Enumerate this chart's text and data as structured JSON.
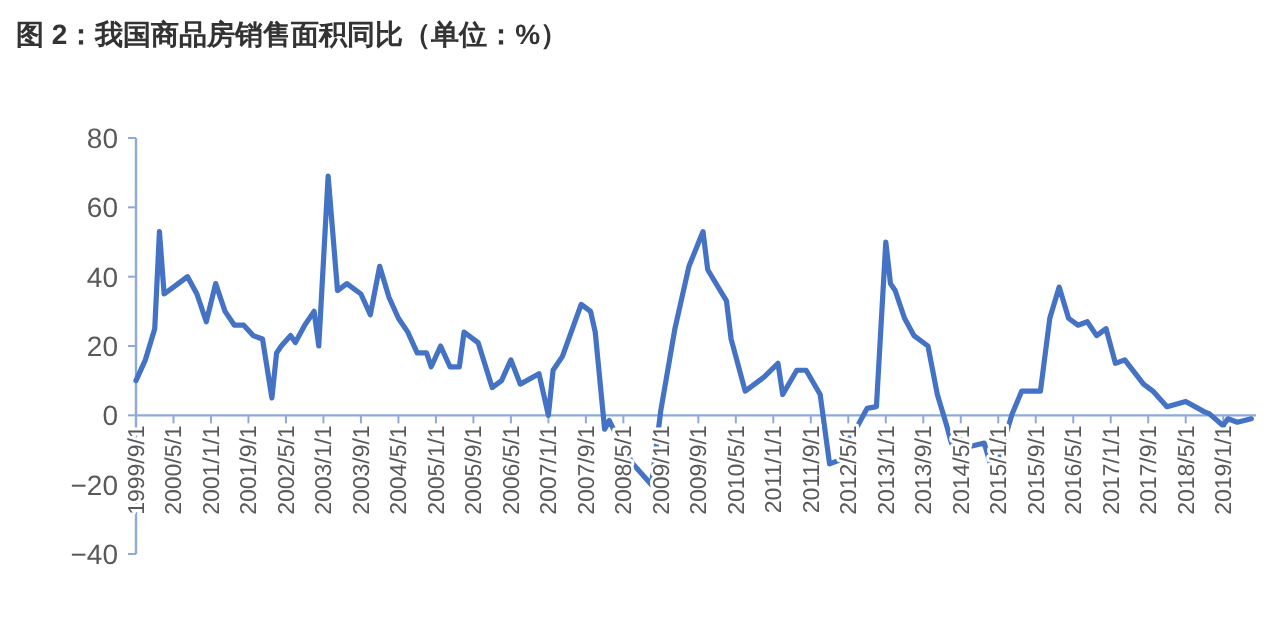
{
  "chart_data": {
    "type": "line",
    "title": "图 2：我国商品房销售面积同比（单位：%）",
    "x": [
      "1999-09",
      "1999-11",
      "2000-01",
      "2000-02",
      "2000-03",
      "2000-05",
      "2000-08",
      "2000-10",
      "2000-12",
      "2001-02",
      "2001-04",
      "2001-06",
      "2001-08",
      "2001-10",
      "2001-12",
      "2002-02",
      "2002-03",
      "2002-04",
      "2002-06",
      "2002-07",
      "2002-09",
      "2002-11",
      "2002-12",
      "2003-02",
      "2003-04",
      "2003-06",
      "2003-09",
      "2003-11",
      "2004-01",
      "2004-03",
      "2004-05",
      "2004-07",
      "2004-09",
      "2004-11",
      "2004-12",
      "2005-02",
      "2005-04",
      "2005-06",
      "2005-07",
      "2005-10",
      "2006-01",
      "2006-03",
      "2006-05",
      "2006-07",
      "2006-11",
      "2007-01",
      "2007-02",
      "2007-04",
      "2007-08",
      "2007-10",
      "2007-11",
      "2008-01",
      "2008-02",
      "2008-04",
      "2008-07",
      "2008-11",
      "2009-01",
      "2009-04",
      "2009-07",
      "2009-10",
      "2009-11",
      "2010-03",
      "2010-04",
      "2010-07",
      "2010-11",
      "2011-02",
      "2011-03",
      "2011-06",
      "2011-08",
      "2011-11",
      "2012-01",
      "2012-03",
      "2012-06",
      "2012-07",
      "2012-09",
      "2012-11",
      "2013-01",
      "2013-02",
      "2013-03",
      "2013-05",
      "2013-07",
      "2013-10",
      "2013-12",
      "2014-02",
      "2014-03",
      "2014-05",
      "2014-07",
      "2014-10",
      "2014-12",
      "2015-04",
      "2015-06",
      "2015-10",
      "2015-12",
      "2016-02",
      "2016-04",
      "2016-06",
      "2016-08",
      "2016-10",
      "2016-12",
      "2017-02",
      "2017-04",
      "2017-08",
      "2017-10",
      "2018-01",
      "2018-05",
      "2018-09",
      "2018-10",
      "2019-01",
      "2019-02",
      "2019-04",
      "2019-07"
    ],
    "series": [
      {
        "color": "#4472c4",
        "values": [
          10,
          16,
          25,
          53,
          35,
          37,
          40,
          35,
          27,
          38,
          30,
          26,
          26,
          23,
          22,
          5,
          18,
          20,
          23,
          21,
          26,
          30,
          20,
          69,
          36,
          38,
          35,
          29,
          43,
          34,
          28,
          24,
          18,
          18,
          14,
          20,
          14,
          14,
          24,
          21,
          8,
          10,
          16,
          9,
          12,
          0,
          13,
          17,
          32,
          30,
          24,
          -4,
          -1.5,
          -7,
          -14,
          -20,
          1.5,
          25,
          43,
          53,
          42,
          33,
          22,
          7,
          11,
          15,
          6,
          13,
          13,
          6,
          -14,
          -13,
          -4,
          -3,
          2,
          2.5,
          50,
          38,
          36,
          28,
          23,
          20,
          6,
          -3,
          -8,
          -7,
          -9,
          -8,
          -17,
          0.5,
          7,
          7,
          28,
          37,
          28,
          26,
          27,
          23,
          25,
          15,
          16,
          9,
          7,
          2.5,
          4,
          1,
          0.5,
          -3,
          -1,
          -2,
          -1
        ]
      }
    ],
    "xlim": [
      "1999-09",
      "2019-08"
    ],
    "xticks": [
      {
        "value": "1999-09",
        "label": "1999/9/1"
      },
      {
        "value": "2000-05",
        "label": "2000/5/1"
      },
      {
        "value": "2001-01",
        "label": "2001/1/1"
      },
      {
        "value": "2001-09",
        "label": "2001/9/1"
      },
      {
        "value": "2002-05",
        "label": "2002/5/1"
      },
      {
        "value": "2003-01",
        "label": "2003/1/1"
      },
      {
        "value": "2003-09",
        "label": "2003/9/1"
      },
      {
        "value": "2004-05",
        "label": "2004/5/1"
      },
      {
        "value": "2005-01",
        "label": "2005/1/1"
      },
      {
        "value": "2005-09",
        "label": "2005/9/1"
      },
      {
        "value": "2006-05",
        "label": "2006/5/1"
      },
      {
        "value": "2007-01",
        "label": "2007/1/1"
      },
      {
        "value": "2007-09",
        "label": "2007/9/1"
      },
      {
        "value": "2008-05",
        "label": "2008/5/1"
      },
      {
        "value": "2009-01",
        "label": "2009/1/1"
      },
      {
        "value": "2009-09",
        "label": "2009/9/1"
      },
      {
        "value": "2010-05",
        "label": "2010/5/1"
      },
      {
        "value": "2011-01",
        "label": "2011/1/1"
      },
      {
        "value": "2011-09",
        "label": "2011/9/1"
      },
      {
        "value": "2012-05",
        "label": "2012/5/1"
      },
      {
        "value": "2013-01",
        "label": "2013/1/1"
      },
      {
        "value": "2013-09",
        "label": "2013/9/1"
      },
      {
        "value": "2014-05",
        "label": "2014/5/1"
      },
      {
        "value": "2015-01",
        "label": "2015/1/1"
      },
      {
        "value": "2015-09",
        "label": "2015/9/1"
      },
      {
        "value": "2016-05",
        "label": "2016/5/1"
      },
      {
        "value": "2017-01",
        "label": "2017/1/1"
      },
      {
        "value": "2017-09",
        "label": "2017/9/1"
      },
      {
        "value": "2018-05",
        "label": "2018/5/1"
      },
      {
        "value": "2019-01",
        "label": "2019/1/1"
      }
    ],
    "ylim": [
      -40,
      80
    ],
    "yticks": [
      -40,
      -20,
      0,
      20,
      40,
      60,
      80
    ],
    "grid": false,
    "line_style": "solid"
  }
}
